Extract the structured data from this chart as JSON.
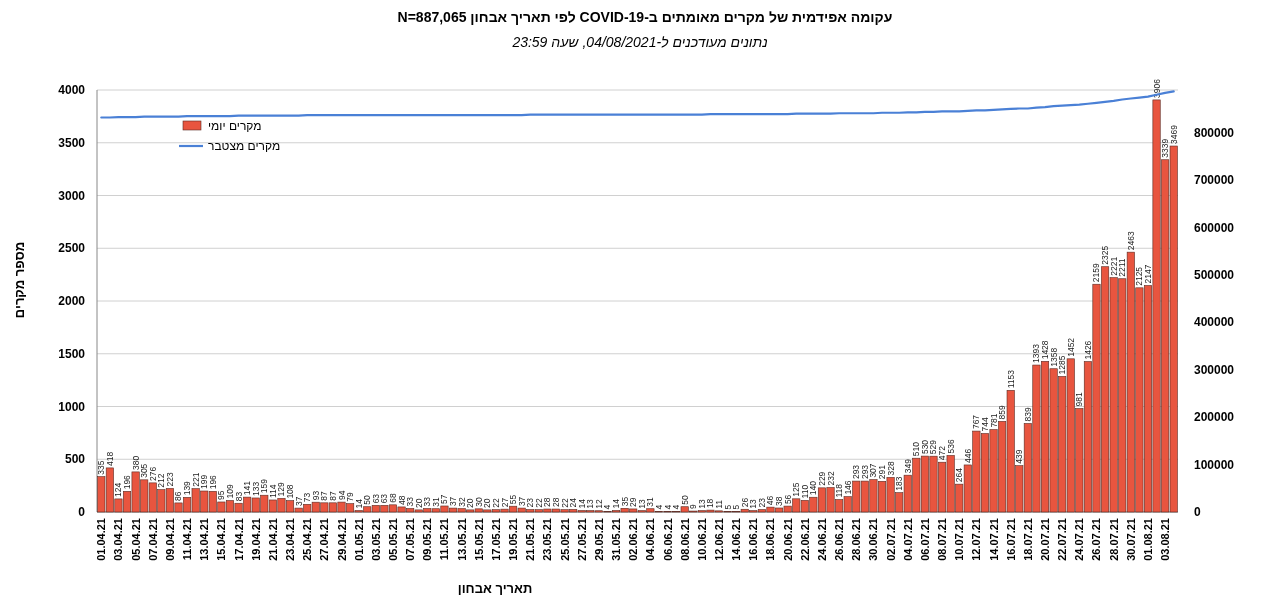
{
  "chart_data": {
    "type": "bar",
    "title": "עקומה אפידמית של מקרים מאומתים ב-COVID-19 לפי תאריך אבחון   N=887,065",
    "subtitle": "נתונים מעודכנים ל-04/08/2021, שעה 23:59",
    "xlabel": "תאריך אבחון",
    "ylabel": "מספר מקרים",
    "categories": [
      "01.04.21",
      null,
      "03.04.21",
      null,
      "05.04.21",
      null,
      "07.04.21",
      null,
      "09.04.21",
      null,
      "11.04.21",
      null,
      "13.04.21",
      null,
      "15.04.21",
      null,
      "17.04.21",
      null,
      "19.04.21",
      null,
      "21.04.21",
      null,
      "23.04.21",
      null,
      "25.04.21",
      null,
      "27.04.21",
      null,
      "29.04.21",
      null,
      "01.05.21",
      null,
      "03.05.21",
      null,
      "05.05.21",
      null,
      "07.05.21",
      null,
      "09.05.21",
      null,
      "11.05.21",
      null,
      "13.05.21",
      null,
      "15.05.21",
      null,
      "17.05.21",
      null,
      "19.05.21",
      null,
      "21.05.21",
      null,
      "23.05.21",
      null,
      "25.05.21",
      null,
      "27.05.21",
      null,
      "29.05.21",
      null,
      "31.05.21",
      null,
      "02.06.21",
      null,
      "04.06.21",
      null,
      "06.06.21",
      null,
      "08.06.21",
      null,
      "10.06.21",
      null,
      "12.06.21",
      null,
      "14.06.21",
      null,
      "16.06.21",
      null,
      "18.06.21",
      null,
      "20.06.21",
      null,
      "22.06.21",
      null,
      "24.06.21",
      null,
      "26.06.21",
      null,
      "28.06.21",
      null,
      "30.06.21",
      null,
      "02.07.21",
      null,
      "04.07.21",
      null,
      "06.07.21",
      null,
      "08.07.21",
      null,
      "10.07.21",
      null,
      "12.07.21",
      null,
      "14.07.21",
      null,
      "16.07.21",
      null,
      "18.07.21",
      null,
      "20.07.21",
      null,
      "22.07.21",
      null,
      "24.07.21",
      null,
      "26.07.21",
      null,
      "28.07.21",
      null,
      "30.07.21",
      null,
      "01.08.21",
      null,
      "03.08.21",
      null
    ],
    "series": [
      {
        "name": "מקרים יומי",
        "color": "#e8553f",
        "values": [
          335,
          418,
          124,
          196,
          380,
          305,
          276,
          212,
          223,
          86,
          139,
          221,
          199,
          196,
          95,
          109,
          83,
          141,
          133,
          159,
          114,
          129,
          108,
          37,
          73,
          93,
          87,
          87,
          94,
          79,
          14,
          50,
          63,
          63,
          68,
          48,
          33,
          20,
          33,
          31,
          57,
          37,
          32,
          20,
          30,
          20,
          22,
          27,
          55,
          37,
          23,
          22,
          28,
          28,
          22,
          24,
          14,
          13,
          12,
          4,
          14,
          35,
          29,
          13,
          31,
          4,
          4,
          4,
          50,
          9,
          13,
          18,
          11,
          5,
          5,
          26,
          13,
          23,
          46,
          38,
          56,
          125,
          110,
          140,
          229,
          232,
          118,
          146,
          293,
          293,
          307,
          291,
          328,
          183,
          349,
          510,
          530,
          529,
          472,
          536,
          264,
          446,
          767,
          744,
          781,
          859,
          1153,
          439,
          839,
          1393,
          1428,
          1358,
          1285,
          1452,
          981,
          1426,
          2159,
          2325,
          2221,
          2211,
          2463,
          2125,
          2147,
          3906,
          3339,
          3469
        ],
        "value_labels": [
          "335",
          "418",
          "124",
          "196",
          "380",
          "305",
          "276",
          "212",
          "223",
          "86",
          "139",
          "221",
          "199",
          "196",
          "95",
          "109",
          "83",
          "141",
          "133",
          "159",
          "114",
          "129",
          "108",
          "37",
          "73",
          "93",
          "87",
          "87",
          "94",
          "79",
          "14",
          "50",
          "63",
          "63",
          "68",
          "48",
          "33",
          "20",
          "33",
          "31",
          "57",
          "37",
          "32",
          "20",
          "30",
          "20",
          "22",
          "27",
          "55",
          "37",
          "23",
          "22",
          "28",
          "28",
          "22",
          "24",
          "14",
          "13",
          "12",
          "4",
          "14",
          "35",
          "29",
          "13",
          "31",
          "4",
          "4",
          "4",
          "50",
          "9",
          "13",
          "18",
          "11",
          "5",
          "5",
          "26",
          "13",
          "23",
          "46",
          "38",
          "56",
          "125",
          "110",
          "140",
          "229",
          "232",
          "118",
          "146",
          "293",
          "293",
          "307",
          "291",
          "328",
          "183",
          "349",
          "510",
          "530",
          "529",
          "472",
          "536",
          "264",
          "446",
          "767",
          "744",
          "781",
          "859",
          "1153",
          "439",
          "839",
          "1393",
          "1428",
          "1358",
          "1285",
          "1452",
          "981",
          "1426",
          "2159",
          "2325",
          "2221",
          "2211",
          "2463",
          "2125",
          "2147",
          "3906",
          "3339",
          "3469"
        ]
      },
      {
        "name": "מקרים מצטבר",
        "type": "line",
        "axis": "y2",
        "color": "#4a80d6",
        "values": [
          832000,
          832000,
          833000,
          833000,
          833000,
          834000,
          834000,
          834000,
          834000,
          834000,
          835000,
          835000,
          835000,
          835000,
          835000,
          835000,
          836000,
          836000,
          836000,
          836000,
          836000,
          836000,
          836000,
          836000,
          837000,
          837000,
          837000,
          837000,
          837000,
          837000,
          837000,
          837000,
          837000,
          837000,
          837000,
          837000,
          837000,
          837000,
          837000,
          837000,
          837000,
          837000,
          837000,
          837000,
          837000,
          837000,
          837000,
          837000,
          837000,
          837000,
          838000,
          838000,
          838000,
          838000,
          838000,
          838000,
          838000,
          838000,
          838000,
          838000,
          838000,
          838000,
          838000,
          838000,
          838000,
          838000,
          838000,
          838000,
          838000,
          838000,
          838000,
          839000,
          839000,
          839000,
          839000,
          839000,
          839000,
          839000,
          839000,
          839000,
          839000,
          840000,
          840000,
          840000,
          840000,
          840000,
          841000,
          841000,
          841000,
          841000,
          841000,
          842000,
          842000,
          842000,
          843000,
          843000,
          844000,
          844000,
          845000,
          845000,
          845000,
          846000,
          847000,
          847000,
          848000,
          849000,
          850000,
          851000,
          851000,
          853000,
          854000,
          856000,
          857000,
          858000,
          859000,
          861000,
          863000,
          865000,
          867000,
          870000,
          872000,
          874000,
          876000,
          880000,
          884000,
          887000
        ]
      }
    ],
    "ylim": [
      0,
      4000
    ],
    "yticks": [
      0,
      500,
      1000,
      1500,
      2000,
      2500,
      3000,
      3500,
      4000
    ],
    "y2lim": [
      0,
      890000
    ],
    "y2ticks": [
      0,
      100000,
      200000,
      300000,
      400000,
      500000,
      600000,
      700000,
      800000
    ],
    "grid": "y",
    "legend": "top left"
  }
}
